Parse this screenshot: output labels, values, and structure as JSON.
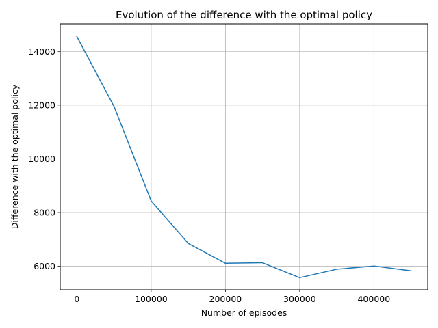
{
  "chart_data": {
    "type": "line",
    "title": "Evolution of the difference with the optimal policy",
    "xlabel": "Number of episodes",
    "ylabel": "Difference with the optimal policy",
    "grid": true,
    "xlim": [
      -22500,
      472500
    ],
    "ylim": [
      5125,
      15025
    ],
    "x_ticks": [
      0,
      100000,
      200000,
      300000,
      400000
    ],
    "x_tick_labels": [
      "0",
      "100000",
      "200000",
      "300000",
      "400000"
    ],
    "y_ticks": [
      6000,
      8000,
      10000,
      12000,
      14000
    ],
    "y_tick_labels": [
      "6000",
      "8000",
      "10000",
      "12000",
      "14000"
    ],
    "series": [
      {
        "color": "#1f77b4",
        "x": [
          0,
          50000,
          100000,
          150000,
          200000,
          250000,
          300000,
          350000,
          400000,
          450000
        ],
        "y": [
          14550,
          11950,
          8430,
          6850,
          6110,
          6130,
          5575,
          5890,
          6010,
          5830
        ]
      }
    ]
  }
}
